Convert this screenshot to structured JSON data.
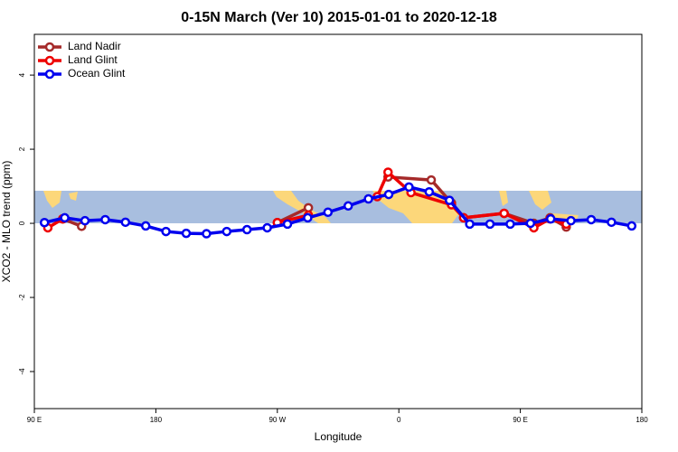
{
  "chart_data": {
    "type": "line",
    "title": "0-15N March (Ver 10)   2015-01-01 to 2020-12-18",
    "xlabel": "Longitude",
    "ylabel": "XCO2 - MLO trend (ppm)",
    "xlim": [
      90,
      540
    ],
    "ylim": [
      -5,
      5.1
    ],
    "xticks": [
      {
        "value": 90,
        "label": "90 E"
      },
      180,
      {
        "value": 270,
        "label": "90 W"
      },
      {
        "value": 360,
        "label": "0"
      },
      {
        "value": 450,
        "label": "90 E"
      },
      {
        "value": 540,
        "label": "180"
      }
    ],
    "yticks": [
      -4,
      -2,
      0,
      2,
      4
    ],
    "legend": "upper left",
    "series": [
      {
        "name": "Land Nadir",
        "color": "#a52a2a",
        "x": [
          111,
          125,
          270,
          293,
          352,
          384,
          399,
          408,
          438,
          460,
          472,
          484
        ],
        "values": [
          0.12,
          -0.08,
          0.02,
          0.42,
          1.25,
          1.17,
          0.55,
          0.15,
          0.27,
          0.0,
          0.15,
          -0.1
        ]
      },
      {
        "name": "Land Glint",
        "color": "#ee0000",
        "x": [
          100,
          111,
          270,
          293,
          344,
          352,
          369,
          399,
          408,
          438,
          460,
          472,
          484
        ],
        "values": [
          -0.12,
          0.12,
          0.02,
          0.22,
          0.72,
          1.38,
          0.83,
          0.5,
          0.15,
          0.27,
          -0.12,
          0.12,
          -0.02
        ]
      },
      {
        "name": "Ocean Glint",
        "color": "#0000ee",
        "x": [
          97.5,
          112.5,
          127.5,
          142.5,
          157.5,
          172.5,
          187.5,
          202.5,
          217.5,
          232.5,
          247.5,
          262.5,
          277.5,
          292.5,
          307.5,
          322.5,
          337.5,
          352.5,
          367.5,
          382.5,
          397.5,
          412.5,
          427.5,
          442.5,
          457.5,
          472.5,
          487.5,
          502.5,
          517.5,
          532.5
        ],
        "values": [
          0.02,
          0.15,
          0.07,
          0.1,
          0.03,
          -0.07,
          -0.22,
          -0.27,
          -0.28,
          -0.22,
          -0.17,
          -0.12,
          -0.02,
          0.15,
          0.3,
          0.47,
          0.66,
          0.78,
          0.98,
          0.85,
          0.62,
          -0.02,
          -0.02,
          -0.02,
          0.0,
          0.12,
          0.07,
          0.1,
          0.03,
          -0.07
        ]
      }
    ]
  }
}
